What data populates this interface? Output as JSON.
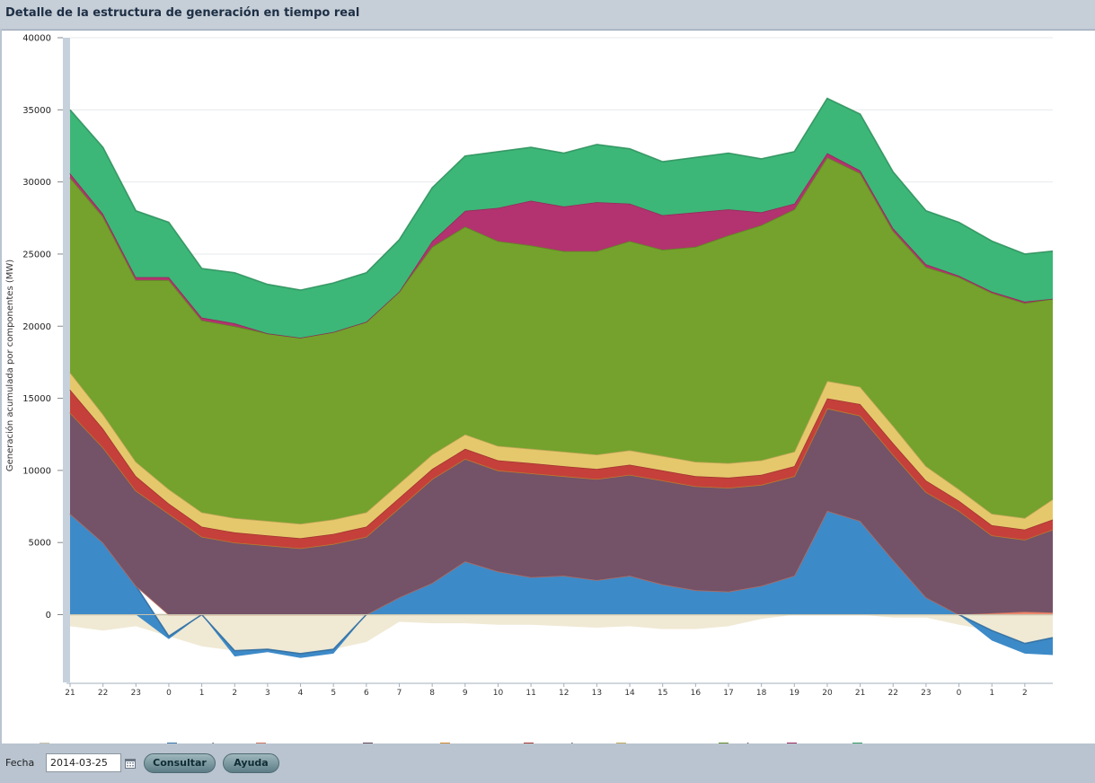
{
  "header": {
    "title": "Detalle de la estructura de generación en tiempo real"
  },
  "footer": {
    "fecha_label": "Fecha",
    "date_value": "2014-03-25",
    "consultar_label": "Consultar",
    "ayuda_label": "Ayuda"
  },
  "chart_data": {
    "type": "area",
    "stacked": true,
    "ylabel": "Generación acumulada por componentes (MW)",
    "ylim": [
      -4700,
      40000
    ],
    "yticks": [
      0,
      5000,
      10000,
      15000,
      20000,
      25000,
      30000,
      35000,
      40000
    ],
    "x_tick_labels": [
      "21",
      "22",
      "23",
      "0",
      "1",
      "2",
      "3",
      "4",
      "5",
      "6",
      "7",
      "8",
      "9",
      "10",
      "11",
      "12",
      "13",
      "14",
      "15",
      "16",
      "17",
      "18",
      "19",
      "20",
      "21",
      "22",
      "23",
      "0",
      "1",
      "2"
    ],
    "x_hours": [
      21,
      22,
      23,
      24,
      25,
      26,
      27,
      28,
      29,
      30,
      31,
      32,
      33,
      34,
      35,
      36,
      37,
      38,
      39,
      40,
      41,
      42,
      43,
      44,
      45,
      46,
      47,
      48,
      49,
      50,
      50.85
    ],
    "grid": true,
    "legend_position": "bottom",
    "series": [
      {
        "name": "Intercambios int.",
        "color": "#ece4c9",
        "values": [
          -800,
          -1100,
          -800,
          -1500,
          -2200,
          -2500,
          -2400,
          -2700,
          -2400,
          -1900,
          -500,
          -600,
          -600,
          -700,
          -700,
          -800,
          -900,
          -800,
          -1000,
          -1000,
          -800,
          -300,
          0,
          0,
          0,
          -200,
          -200,
          -700,
          -1100,
          -2000,
          -1600
        ]
      },
      {
        "name": "Hidráulica",
        "color": "#3d8ac8",
        "values": [
          7000,
          5000,
          2000,
          -200,
          0,
          -400,
          -200,
          -300,
          -300,
          0,
          1200,
          2200,
          3700,
          3000,
          2600,
          2700,
          2400,
          2700,
          2100,
          1700,
          1600,
          2000,
          2700,
          7200,
          6500,
          3800,
          1200,
          0,
          -700,
          -700,
          -1200
        ]
      },
      {
        "name": "Enlace balear",
        "color": "#f08a70",
        "values": [
          0,
          0,
          0,
          0,
          0,
          0,
          0,
          0,
          0,
          0,
          0,
          0,
          0,
          0,
          0,
          0,
          0,
          0,
          0,
          0,
          0,
          0,
          0,
          0,
          0,
          0,
          0,
          0,
          100,
          200,
          150
        ]
      },
      {
        "name": "Nuclear",
        "color": "#745268",
        "values": [
          7000,
          6600,
          6600,
          7000,
          5400,
          5000,
          4800,
          4600,
          4900,
          5400,
          6200,
          7200,
          7100,
          7000,
          7200,
          6900,
          7000,
          7000,
          7200,
          7200,
          7200,
          7000,
          6900,
          7100,
          7300,
          7300,
          7300,
          7200,
          5400,
          5000,
          5750
        ]
      },
      {
        "name": "Fuel/gas",
        "color": "#f5a134",
        "values": [
          0,
          0,
          0,
          0,
          0,
          0,
          0,
          0,
          0,
          0,
          0,
          0,
          0,
          0,
          0,
          0,
          0,
          0,
          0,
          0,
          0,
          0,
          0,
          0,
          0,
          0,
          0,
          0,
          0,
          0,
          0
        ]
      },
      {
        "name": "Carbón",
        "color": "#c5403a",
        "values": [
          1600,
          1300,
          1000,
          700,
          700,
          700,
          700,
          700,
          700,
          700,
          700,
          700,
          700,
          700,
          700,
          700,
          700,
          700,
          700,
          700,
          700,
          700,
          700,
          700,
          800,
          800,
          800,
          700,
          700,
          700,
          700
        ]
      },
      {
        "name": "Ciclo combinado",
        "color": "#e6c86c",
        "values": [
          1200,
          1000,
          1000,
          1000,
          1000,
          1000,
          1000,
          1000,
          1000,
          1000,
          1000,
          1000,
          1000,
          1000,
          1000,
          1000,
          1000,
          1000,
          1000,
          1000,
          1000,
          1000,
          1000,
          1200,
          1200,
          1200,
          1000,
          800,
          800,
          800,
          1400
        ]
      },
      {
        "name": "Eólica",
        "color": "#74a22c",
        "values": [
          13500,
          13700,
          12600,
          14500,
          13300,
          13300,
          13000,
          12900,
          13000,
          13200,
          13300,
          14400,
          14400,
          14200,
          14100,
          13900,
          14100,
          14500,
          14300,
          14900,
          15800,
          16300,
          16800,
          15500,
          14800,
          13500,
          13800,
          14700,
          15300,
          14900,
          13900
        ]
      },
      {
        "name": "Solar",
        "color": "#b2336f",
        "values": [
          300,
          200,
          200,
          200,
          200,
          200,
          0,
          0,
          0,
          0,
          0,
          400,
          1100,
          2300,
          3100,
          3100,
          3400,
          2600,
          2400,
          2400,
          1800,
          900,
          400,
          300,
          200,
          200,
          200,
          100,
          100,
          100,
          0
        ]
      },
      {
        "name": "Resto reg. esp.",
        "color": "#3cb777",
        "values": [
          4400,
          4600,
          4600,
          3800,
          3400,
          3500,
          3400,
          3300,
          3400,
          3400,
          3600,
          3700,
          3800,
          3900,
          3700,
          3700,
          4000,
          3800,
          3700,
          3800,
          3900,
          3700,
          3600,
          3800,
          3900,
          3900,
          3700,
          3700,
          3500,
          3300,
          3300
        ]
      }
    ]
  }
}
